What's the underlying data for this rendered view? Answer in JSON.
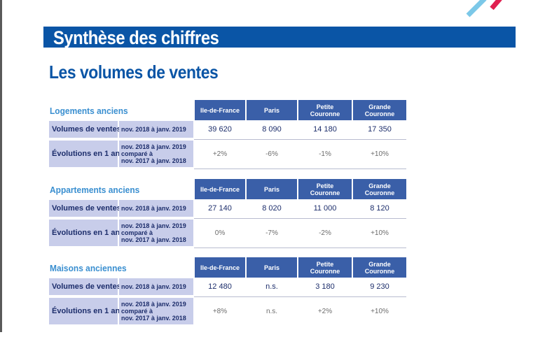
{
  "banner": {
    "title": "Synthèse des chiffres"
  },
  "subtitle": "Les volumes de ventes",
  "columns": [
    "Ile-de-France",
    "Paris",
    "Petite\nCouronne",
    "Grande\nCouronne"
  ],
  "row_labels": {
    "volumes": "Volumes de ventes",
    "evolutions": "Évolutions en 1 an"
  },
  "sections": [
    {
      "title": "Logements anciens",
      "volume_period": "nov. 2018 à janv. 2019",
      "evolution_period": "nov. 2018 à janv. 2019\ncomparé à\nnov. 2017 à janv. 2018",
      "volumes": [
        "39 620",
        "8 090",
        "14 180",
        "17 350"
      ],
      "evolutions": [
        "+2%",
        "-6%",
        "-1%",
        "+10%"
      ]
    },
    {
      "title": "Appartements anciens",
      "volume_period": "nov. 2018 à janv. 2019",
      "evolution_period": "nov. 2018 à janv. 2019\ncomparé à\nnov. 2017 à janv. 2018",
      "volumes": [
        "27 140",
        "8 020",
        "11 000",
        "8 120"
      ],
      "evolutions": [
        "0%",
        "-7%",
        "-2%",
        "+10%"
      ]
    },
    {
      "title": "Maisons anciennes",
      "volume_period": "nov. 2018 à janv. 2019",
      "evolution_period": "nov. 2018 à janv. 2019\ncomparé à\nnov. 2017 à janv. 2018",
      "volumes": [
        "12 480",
        "n.s.",
        "3 180",
        "9 230"
      ],
      "evolutions": [
        "+8%",
        "n.s.",
        "+2%",
        "+10%"
      ]
    }
  ],
  "colors": {
    "banner": "#0a55a6",
    "section_title": "#3a8fd0",
    "column_header": "#3a5fa8",
    "row_label_bg": "#c8cdea",
    "text_dark": "#1c2d6b"
  }
}
